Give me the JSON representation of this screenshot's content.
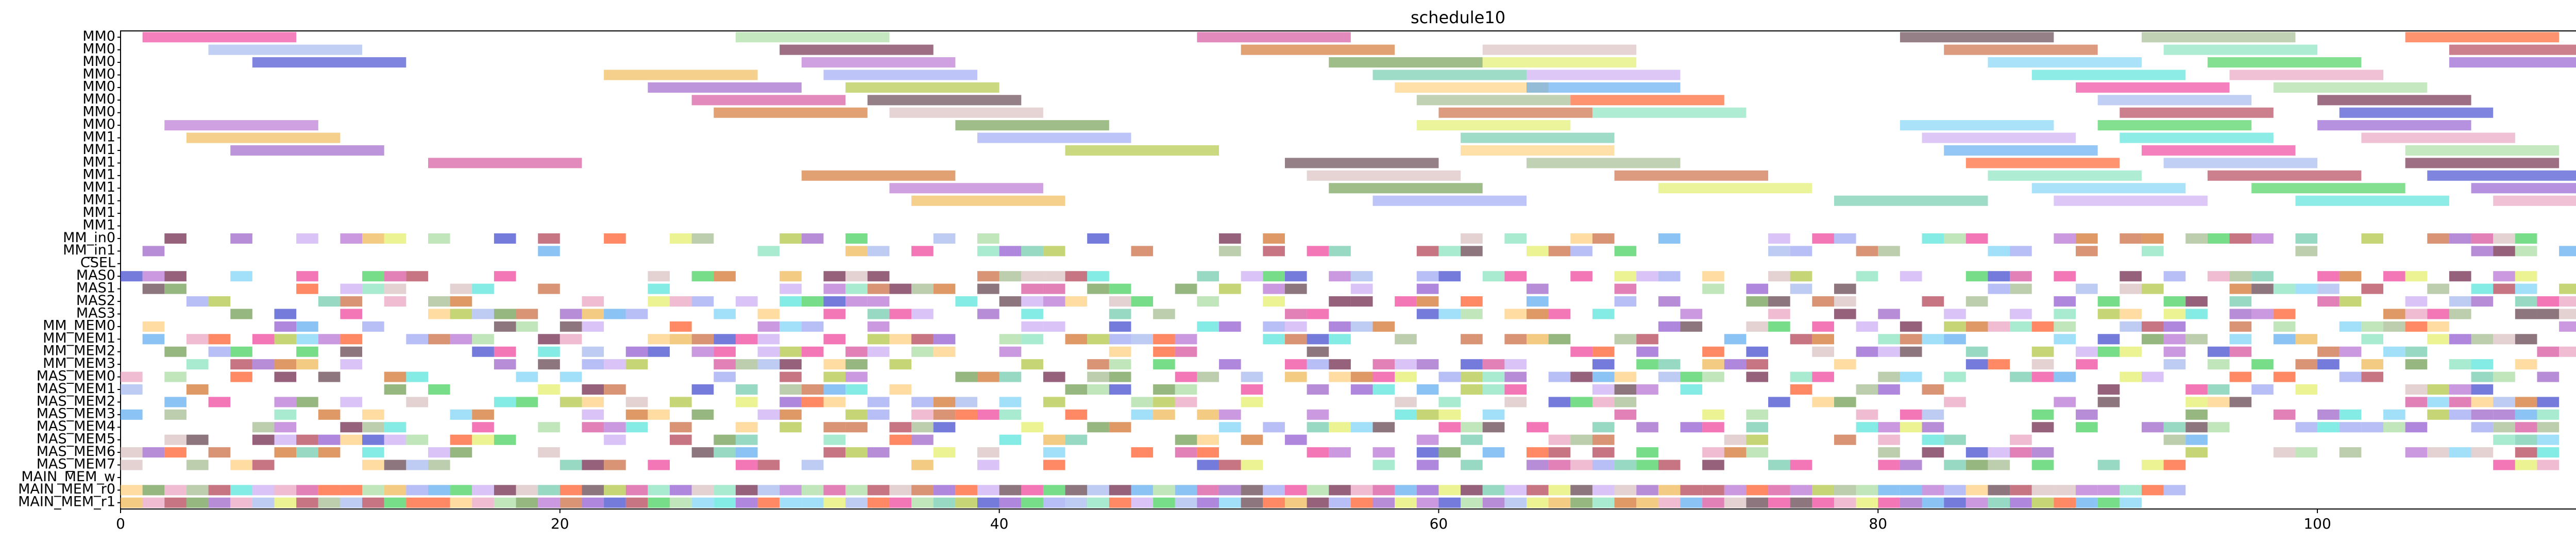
{
  "chart_data": {
    "type": "gantt",
    "title": "schedule10",
    "xlabel": "",
    "ylabel": "",
    "xlim": [
      0,
      115.5
    ],
    "x_ticks": [
      0,
      20,
      40,
      60,
      80,
      100
    ],
    "grid": false,
    "legend": "none",
    "rows": [
      "MM0",
      "MM0",
      "MM0",
      "MM0",
      "MM0",
      "MM0",
      "MM0",
      "MM0",
      "MM1",
      "MM1",
      "MM1",
      "MM1",
      "MM1",
      "MM1",
      "MM1",
      "MM1",
      "MM_in0",
      "MM_in1",
      "CSEL",
      "MAS0",
      "MAS1",
      "MAS2",
      "MAS3",
      "MM_MEM0",
      "MM_MEM1",
      "MM_MEM2",
      "MM_MEM3",
      "MAS_MEM0",
      "MAS_MEM1",
      "MAS_MEM2",
      "MAS_MEM3",
      "MAS_MEM4",
      "MAS_MEM5",
      "MAS_MEM6",
      "MAS_MEM7",
      "MAIN_MEM_w",
      "MAIN_MEM_r0",
      "MAIN_MEM_r1"
    ],
    "palette": [
      "#ee3d99",
      "#a7dc9f",
      "#d44c9a",
      "#5e3c48",
      "#9fb98a",
      "#ff5722",
      "#a2b6f0",
      "#6a2043",
      "#d16e27",
      "#d8bdbd",
      "#c9663a",
      "#83e3bc",
      "#b03a4f",
      "#3a43cc",
      "#b56ed1",
      "#6a9a4a",
      "#e2ee65",
      "#7bd3f6",
      "#3fcf55",
      "#8d56d0",
      "#f0b54e",
      "#9aa4f4",
      "#6cc9a9",
      "#c9a9f3",
      "#50e4d8",
      "#e89fbd",
      "#9a5cc7",
      "#aec33b",
      "#ffcf7b",
      "#5aa9ef"
    ],
    "bars": [
      {
        "row": 0,
        "start": 1,
        "dur": 7
      },
      {
        "row": 0,
        "start": 28,
        "dur": 7
      },
      {
        "row": 0,
        "start": 49,
        "dur": 7
      },
      {
        "row": 0,
        "start": 81,
        "dur": 7
      },
      {
        "row": 0,
        "start": 92,
        "dur": 7
      },
      {
        "row": 0,
        "start": 104,
        "dur": 7
      },
      {
        "row": 1,
        "start": 4,
        "dur": 7
      },
      {
        "row": 1,
        "start": 30,
        "dur": 7
      },
      {
        "row": 1,
        "start": 51,
        "dur": 7
      },
      {
        "row": 1,
        "start": 62,
        "dur": 7
      },
      {
        "row": 1,
        "start": 83,
        "dur": 7
      },
      {
        "row": 1,
        "start": 93,
        "dur": 7
      },
      {
        "row": 1,
        "start": 106,
        "dur": 7
      },
      {
        "row": 2,
        "start": 6,
        "dur": 7
      },
      {
        "row": 2,
        "start": 31,
        "dur": 7
      },
      {
        "row": 2,
        "start": 55,
        "dur": 7
      },
      {
        "row": 2,
        "start": 62,
        "dur": 7
      },
      {
        "row": 2,
        "start": 85,
        "dur": 7
      },
      {
        "row": 2,
        "start": 95,
        "dur": 7
      },
      {
        "row": 2,
        "start": 106,
        "dur": 7
      },
      {
        "row": 3,
        "start": 22,
        "dur": 7
      },
      {
        "row": 3,
        "start": 32,
        "dur": 7
      },
      {
        "row": 3,
        "start": 57,
        "dur": 7
      },
      {
        "row": 3,
        "start": 64,
        "dur": 7
      },
      {
        "row": 3,
        "start": 87,
        "dur": 7
      },
      {
        "row": 3,
        "start": 96,
        "dur": 7
      },
      {
        "row": 4,
        "start": 24,
        "dur": 7
      },
      {
        "row": 4,
        "start": 33,
        "dur": 7
      },
      {
        "row": 4,
        "start": 58,
        "dur": 7
      },
      {
        "row": 4,
        "start": 64,
        "dur": 7
      },
      {
        "row": 4,
        "start": 89,
        "dur": 7
      },
      {
        "row": 4,
        "start": 98,
        "dur": 7
      },
      {
        "row": 5,
        "start": 26,
        "dur": 7
      },
      {
        "row": 5,
        "start": 34,
        "dur": 7
      },
      {
        "row": 5,
        "start": 59,
        "dur": 7
      },
      {
        "row": 5,
        "start": 66,
        "dur": 7
      },
      {
        "row": 5,
        "start": 90,
        "dur": 7
      },
      {
        "row": 5,
        "start": 100,
        "dur": 7
      },
      {
        "row": 6,
        "start": 27,
        "dur": 7
      },
      {
        "row": 6,
        "start": 35,
        "dur": 7
      },
      {
        "row": 6,
        "start": 60,
        "dur": 7
      },
      {
        "row": 6,
        "start": 67,
        "dur": 7
      },
      {
        "row": 6,
        "start": 91,
        "dur": 7
      },
      {
        "row": 6,
        "start": 101,
        "dur": 7
      },
      {
        "row": 7,
        "start": 2,
        "dur": 7
      },
      {
        "row": 7,
        "start": 38,
        "dur": 7
      },
      {
        "row": 7,
        "start": 59,
        "dur": 7
      },
      {
        "row": 7,
        "start": 81,
        "dur": 7
      },
      {
        "row": 7,
        "start": 90,
        "dur": 7
      },
      {
        "row": 7,
        "start": 100,
        "dur": 7
      },
      {
        "row": 8,
        "start": 3,
        "dur": 7
      },
      {
        "row": 8,
        "start": 39,
        "dur": 7
      },
      {
        "row": 8,
        "start": 61,
        "dur": 7
      },
      {
        "row": 8,
        "start": 82,
        "dur": 7
      },
      {
        "row": 8,
        "start": 91,
        "dur": 7
      },
      {
        "row": 8,
        "start": 102,
        "dur": 7
      },
      {
        "row": 9,
        "start": 5,
        "dur": 7
      },
      {
        "row": 9,
        "start": 43,
        "dur": 7
      },
      {
        "row": 9,
        "start": 61,
        "dur": 7
      },
      {
        "row": 9,
        "start": 83,
        "dur": 7
      },
      {
        "row": 9,
        "start": 92,
        "dur": 7
      },
      {
        "row": 9,
        "start": 104,
        "dur": 7
      },
      {
        "row": 10,
        "start": 14,
        "dur": 7
      },
      {
        "row": 10,
        "start": 53,
        "dur": 7
      },
      {
        "row": 10,
        "start": 64,
        "dur": 7
      },
      {
        "row": 10,
        "start": 84,
        "dur": 7
      },
      {
        "row": 10,
        "start": 93,
        "dur": 7
      },
      {
        "row": 10,
        "start": 104,
        "dur": 7
      },
      {
        "row": 11,
        "start": 31,
        "dur": 7
      },
      {
        "row": 11,
        "start": 54,
        "dur": 7
      },
      {
        "row": 11,
        "start": 68,
        "dur": 7
      },
      {
        "row": 11,
        "start": 85,
        "dur": 7
      },
      {
        "row": 11,
        "start": 95,
        "dur": 7
      },
      {
        "row": 11,
        "start": 105,
        "dur": 7
      },
      {
        "row": 12,
        "start": 35,
        "dur": 7
      },
      {
        "row": 12,
        "start": 55,
        "dur": 7
      },
      {
        "row": 12,
        "start": 70,
        "dur": 7
      },
      {
        "row": 12,
        "start": 87,
        "dur": 7
      },
      {
        "row": 12,
        "start": 97,
        "dur": 7
      },
      {
        "row": 12,
        "start": 107,
        "dur": 7
      },
      {
        "row": 13,
        "start": 36,
        "dur": 7
      },
      {
        "row": 13,
        "start": 57,
        "dur": 7
      },
      {
        "row": 13,
        "start": 78,
        "dur": 7
      },
      {
        "row": 13,
        "start": 88,
        "dur": 7
      },
      {
        "row": 13,
        "start": 99,
        "dur": 7
      },
      {
        "row": 13,
        "start": 108,
        "dur": 7
      }
    ],
    "small_rows": {
      "from": 16,
      "to": 37,
      "dur": 1
    }
  }
}
